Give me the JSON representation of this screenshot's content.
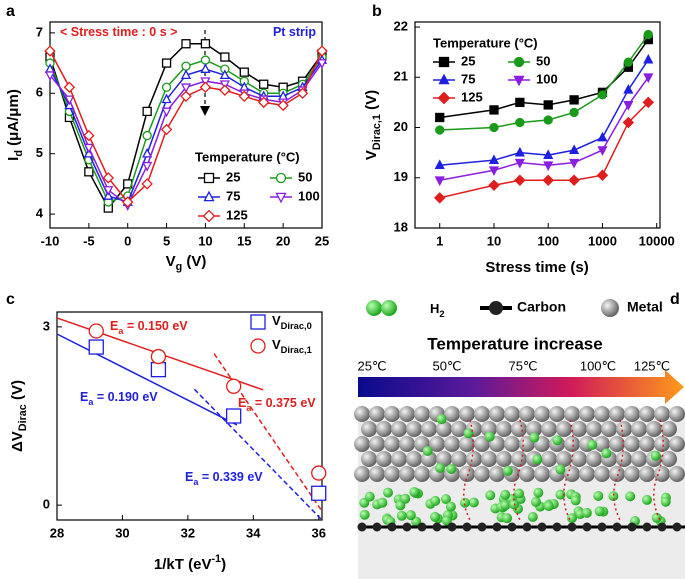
{
  "panels": [
    "a",
    "b",
    "c",
    "d"
  ],
  "chart_data": [
    {
      "type": "line",
      "annotations": [
        {
          "text": "< Stress time : 0 s >",
          "color": "#e01e1e"
        },
        {
          "text": "Pt strip",
          "color": "#1f1fe0"
        }
      ],
      "xlabel": {
        "text": "V",
        "sub": "g",
        "unit": " (V)"
      },
      "ylabel": {
        "text": "I",
        "sub": "d",
        "unit": " (μA/μm)"
      },
      "legend_title": "Temperature (°C)",
      "legend": "lower right",
      "filled": false,
      "x": [
        -10,
        -7.5,
        -5,
        -2.5,
        0,
        2.5,
        5,
        7.5,
        10,
        12.5,
        15,
        17.5,
        20,
        22.5,
        25
      ],
      "xlim": [
        -10,
        25
      ],
      "xticks": [
        -10,
        -5,
        0,
        5,
        10,
        15,
        20,
        25
      ],
      "ylim": [
        3.77,
        7.18
      ],
      "yticks": [
        4,
        5,
        6,
        7
      ],
      "series": [
        {
          "name": "25",
          "color": "#000000",
          "marker": "square",
          "values": [
            6.6,
            5.6,
            4.7,
            4.1,
            4.5,
            5.7,
            6.5,
            6.82,
            6.82,
            6.6,
            6.35,
            6.15,
            6.1,
            6.2,
            6.65
          ]
        },
        {
          "name": "50",
          "color": "#1a9a1a",
          "marker": "circle",
          "values": [
            6.5,
            5.7,
            4.9,
            4.2,
            4.3,
            5.3,
            6.1,
            6.45,
            6.55,
            6.4,
            6.2,
            6.0,
            6.0,
            6.15,
            6.6
          ]
        },
        {
          "name": "75",
          "color": "#1f1fe0",
          "marker": "triangle-up",
          "values": [
            6.4,
            5.8,
            5.0,
            4.3,
            4.2,
            5.0,
            5.9,
            6.3,
            6.4,
            6.3,
            6.1,
            5.95,
            5.95,
            6.1,
            6.55
          ]
        },
        {
          "name": "100",
          "color": "#8a1ee0",
          "marker": "triangle-down",
          "values": [
            6.3,
            5.9,
            5.1,
            4.4,
            4.15,
            4.8,
            5.7,
            6.1,
            6.2,
            6.15,
            6.0,
            5.9,
            5.85,
            6.05,
            6.5
          ]
        },
        {
          "name": "125",
          "color": "#e01e1e",
          "marker": "diamond",
          "values": [
            6.7,
            6.1,
            5.3,
            4.6,
            4.2,
            4.5,
            5.4,
            5.95,
            6.1,
            6.05,
            5.95,
            5.85,
            5.8,
            6.0,
            6.7
          ]
        }
      ]
    },
    {
      "type": "line",
      "xlabel": "Stress time (s)",
      "ylabel": {
        "text": "V",
        "sub": "Dirac,1",
        "unit": " (V)"
      },
      "legend_title": "Temperature (°C)",
      "legend": "upper left",
      "filled": true,
      "xscale": "log",
      "x": [
        1,
        10,
        30,
        100,
        300,
        1000,
        3000,
        7000
      ],
      "xlim": [
        0.35,
        11500
      ],
      "xticks": [
        1,
        10,
        100,
        1000,
        10000
      ],
      "ylim": [
        18,
        22.1
      ],
      "yticks": [
        18,
        19,
        20,
        21,
        22
      ],
      "series": [
        {
          "name": "25",
          "color": "#000000",
          "marker": "square",
          "values": [
            20.2,
            20.35,
            20.5,
            20.45,
            20.55,
            20.7,
            21.2,
            21.75
          ]
        },
        {
          "name": "50",
          "color": "#1a9a1a",
          "marker": "circle",
          "values": [
            19.95,
            20.0,
            20.1,
            20.15,
            20.3,
            20.65,
            21.3,
            21.85
          ]
        },
        {
          "name": "75",
          "color": "#1f1fe0",
          "marker": "triangle-up",
          "values": [
            19.25,
            19.35,
            19.5,
            19.45,
            19.55,
            19.8,
            20.75,
            21.35
          ]
        },
        {
          "name": "100",
          "color": "#8a1ee0",
          "marker": "triangle-down",
          "values": [
            18.95,
            19.15,
            19.3,
            19.25,
            19.3,
            19.55,
            20.45,
            21.0
          ]
        },
        {
          "name": "125",
          "color": "#e01e1e",
          "marker": "diamond",
          "values": [
            18.6,
            18.85,
            18.95,
            18.95,
            18.95,
            19.05,
            20.1,
            20.5
          ]
        }
      ]
    },
    {
      "type": "scatter",
      "annotations": [
        {
          "text": "E",
          "sub": "a",
          "unit": " = 0.150 eV",
          "color": "#e01e1e"
        },
        {
          "text": "E",
          "sub": "a",
          "unit": " = 0.190 eV",
          "color": "#1f1fe0"
        },
        {
          "text": "E",
          "sub": "a",
          "unit": " = 0.339 eV",
          "color": "#1f1fe0"
        },
        {
          "text": "E",
          "sub": "a",
          "unit": " = 0.375 eV",
          "color": "#e01e1e"
        }
      ],
      "xlabel": {
        "text": "1/kT (eV",
        "sup": "-1",
        "unit": ")"
      },
      "ylabel": {
        "text": "ΔV",
        "sub": "Dirac",
        "unit": " (V)"
      },
      "legend": "upper right",
      "filled": false,
      "xlim": [
        28,
        36.1
      ],
      "xticks": [
        28,
        30,
        32,
        34,
        36
      ],
      "ylim": [
        -0.25,
        3.25
      ],
      "yticks": [
        0,
        3
      ],
      "series": [
        {
          "name": {
            "text": "V",
            "sub": "Dirac,0"
          },
          "color": "#1f1fe0",
          "marker": "square",
          "x": [
            29.2,
            31.1,
            33.4,
            36
          ],
          "values": [
            2.66,
            2.28,
            1.5,
            0.2
          ]
        },
        {
          "name": {
            "text": "V",
            "sub": "Dirac,1"
          },
          "color": "#e01e1e",
          "marker": "circle",
          "x": [
            29.2,
            31.1,
            33.4,
            36
          ],
          "values": [
            2.93,
            2.5,
            2.0,
            0.54
          ]
        }
      ],
      "fits": [
        {
          "color": "#1f1fe0",
          "dashed": false,
          "x": [
            28,
            33.5
          ],
          "values": [
            2.88,
            1.35
          ]
        },
        {
          "color": "#1f1fe0",
          "dashed": true,
          "x": [
            32.2,
            36.1
          ],
          "values": [
            1.95,
            -0.25
          ]
        },
        {
          "color": "#e01e1e",
          "dashed": false,
          "x": [
            28,
            34.3
          ],
          "values": [
            3.15,
            1.94
          ]
        },
        {
          "color": "#e01e1e",
          "dashed": true,
          "x": [
            32.8,
            36.1
          ],
          "values": [
            2.55,
            -0.1
          ]
        }
      ]
    }
  ],
  "diagram": {
    "h2": {
      "text": "H",
      "sub": "2"
    },
    "carbon": "Carbon",
    "metal": "Metal",
    "title": "Temperature increase",
    "temperatures": [
      "25℃",
      "50℃",
      "75℃",
      "100℃",
      "125℃"
    ]
  }
}
